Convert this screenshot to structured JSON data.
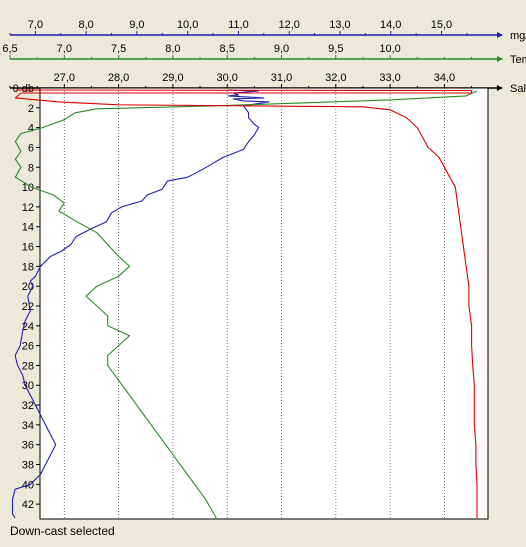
{
  "status_text": "Down-cast selected",
  "chart_data": {
    "type": "line",
    "depth_axis": {
      "ticks": [
        0,
        2,
        4,
        6,
        8,
        10,
        12,
        14,
        16,
        18,
        20,
        22,
        24,
        26,
        28,
        30,
        32,
        34,
        36,
        38,
        40,
        42
      ],
      "tick_labels": [
        "0 db",
        "2",
        "4",
        "6",
        "8",
        "10",
        "12",
        "14",
        "16",
        "18",
        "20",
        "22",
        "24",
        "26",
        "28",
        "30",
        "32",
        "34",
        "36",
        "38",
        "40",
        "42"
      ],
      "range": [
        0,
        43.5
      ],
      "inverted": true
    },
    "x_axes": [
      {
        "key": "oxygen",
        "unit_label": "mg/l",
        "color": "#1f1fb0",
        "range": [
          6.5,
          15.7
        ],
        "major_ticks": [
          7,
          8,
          9,
          10,
          11,
          12,
          13,
          14,
          15
        ],
        "major_labels": [
          "7,0",
          "8,0",
          "9,0",
          "10,0",
          "11,0",
          "12,0",
          "13,0",
          "14,0",
          "15,0"
        ]
      },
      {
        "key": "temperature",
        "unit_label": "Temp",
        "color": "#2a8a2a",
        "range": [
          6.5,
          10.8
        ],
        "major_ticks": [
          6.5,
          7,
          7.5,
          8,
          8.5,
          9,
          9.5,
          10
        ],
        "major_labels": [
          "6,5",
          "7,0",
          "7,5",
          "8,0",
          "8,5",
          "9,0",
          "9,5",
          "10,0"
        ]
      },
      {
        "key": "salinity",
        "unit_label": "Sal.",
        "color": "#000000",
        "range": [
          26.0,
          34.6
        ],
        "major_ticks": [
          27,
          28,
          29,
          30,
          31,
          32,
          33,
          34
        ],
        "major_labels": [
          "27,0",
          "28,0",
          "29,0",
          "30,0",
          "31,0",
          "32,0",
          "33,0",
          "34,0"
        ]
      }
    ],
    "grid": "vertical-dotted",
    "series": [
      {
        "axis": "oxygen",
        "color": "#1f1fb0",
        "points": [
          [
            10.8,
            0.2
          ],
          [
            11.4,
            0.3
          ],
          [
            10.9,
            0.5
          ],
          [
            11.0,
            0.7
          ],
          [
            10.8,
            0.8
          ],
          [
            11.5,
            1.0
          ],
          [
            10.9,
            1.1
          ],
          [
            11.1,
            1.3
          ],
          [
            11.6,
            1.4
          ],
          [
            11.1,
            1.8
          ],
          [
            11.2,
            2.5
          ],
          [
            11.2,
            3.0
          ],
          [
            11.3,
            3.6
          ],
          [
            11.4,
            4.0
          ],
          [
            11.3,
            4.8
          ],
          [
            11.2,
            5.4
          ],
          [
            11.1,
            6.2
          ],
          [
            10.7,
            7.0
          ],
          [
            10.5,
            7.6
          ],
          [
            10.3,
            8.2
          ],
          [
            10.0,
            9.0
          ],
          [
            9.6,
            9.4
          ],
          [
            9.5,
            10.2
          ],
          [
            9.2,
            10.8
          ],
          [
            9.1,
            11.4
          ],
          [
            8.7,
            12.0
          ],
          [
            8.5,
            12.6
          ],
          [
            8.4,
            13.5
          ],
          [
            8.1,
            14.2
          ],
          [
            7.8,
            15.0
          ],
          [
            7.7,
            15.8
          ],
          [
            7.5,
            16.5
          ],
          [
            7.3,
            17.0
          ],
          [
            7.1,
            18.0
          ],
          [
            7.0,
            19.0
          ],
          [
            6.9,
            19.5
          ],
          [
            6.95,
            20.0
          ],
          [
            6.85,
            21.0
          ],
          [
            6.9,
            22.5
          ],
          [
            6.8,
            23.5
          ],
          [
            6.75,
            24.5
          ],
          [
            6.7,
            26.0
          ],
          [
            6.6,
            27.0
          ],
          [
            6.65,
            28.0
          ],
          [
            6.75,
            29.0
          ],
          [
            6.8,
            30.0
          ],
          [
            6.9,
            31.0
          ],
          [
            7.0,
            32.0
          ],
          [
            7.1,
            33.0
          ],
          [
            7.2,
            34.0
          ],
          [
            7.3,
            35.0
          ],
          [
            7.4,
            36.0
          ],
          [
            7.3,
            37.0
          ],
          [
            7.2,
            38.0
          ],
          [
            7.1,
            39.0
          ],
          [
            6.9,
            40.0
          ],
          [
            6.6,
            40.5
          ],
          [
            6.55,
            41.5
          ],
          [
            6.55,
            43.0
          ],
          [
            6.6,
            43.4
          ]
        ]
      },
      {
        "axis": "temperature",
        "color": "#2a8a2a",
        "points": [
          [
            10.8,
            0.3
          ],
          [
            10.7,
            0.8
          ],
          [
            10.0,
            1.2
          ],
          [
            8.4,
            1.8
          ],
          [
            7.3,
            2.1
          ],
          [
            7.1,
            2.5
          ],
          [
            7.0,
            3.2
          ],
          [
            6.8,
            4.0
          ],
          [
            6.6,
            4.6
          ],
          [
            6.55,
            5.4
          ],
          [
            6.6,
            6.4
          ],
          [
            6.55,
            7.2
          ],
          [
            6.6,
            8.0
          ],
          [
            6.55,
            9.0
          ],
          [
            6.7,
            10.0
          ],
          [
            6.9,
            10.8
          ],
          [
            7.0,
            11.6
          ],
          [
            6.95,
            12.4
          ],
          [
            7.1,
            13.4
          ],
          [
            7.3,
            14.6
          ],
          [
            7.4,
            15.8
          ],
          [
            7.5,
            17.0
          ],
          [
            7.6,
            18.0
          ],
          [
            7.5,
            19.0
          ],
          [
            7.3,
            20.0
          ],
          [
            7.2,
            21.0
          ],
          [
            7.3,
            22.0
          ],
          [
            7.4,
            23.0
          ],
          [
            7.4,
            24.0
          ],
          [
            7.6,
            25.0
          ],
          [
            7.5,
            26.0
          ],
          [
            7.4,
            27.0
          ],
          [
            7.4,
            28.0
          ],
          [
            7.5,
            29.5
          ],
          [
            7.6,
            31.0
          ],
          [
            7.7,
            32.5
          ],
          [
            7.8,
            34.0
          ],
          [
            7.9,
            35.5
          ],
          [
            8.0,
            37.0
          ],
          [
            8.1,
            38.5
          ],
          [
            8.2,
            40.0
          ],
          [
            8.3,
            41.5
          ],
          [
            8.4,
            43.4
          ]
        ]
      },
      {
        "axis": "salinity",
        "color": "#e00000",
        "points": [
          [
            26.1,
            0.2
          ],
          [
            34.5,
            0.25
          ],
          [
            34.5,
            0.5
          ],
          [
            26.2,
            0.5
          ],
          [
            26.1,
            1.0
          ],
          [
            26.9,
            1.4
          ],
          [
            28.0,
            1.7
          ],
          [
            32.5,
            1.9
          ],
          [
            33.0,
            2.2
          ],
          [
            33.3,
            3.0
          ],
          [
            33.5,
            4.0
          ],
          [
            33.6,
            5.0
          ],
          [
            33.7,
            6.0
          ],
          [
            33.9,
            7.0
          ],
          [
            34.0,
            8.0
          ],
          [
            34.1,
            9.0
          ],
          [
            34.2,
            10.0
          ],
          [
            34.25,
            12.0
          ],
          [
            34.3,
            14.0
          ],
          [
            34.35,
            16.0
          ],
          [
            34.4,
            18.0
          ],
          [
            34.45,
            20.0
          ],
          [
            34.45,
            22.0
          ],
          [
            34.5,
            24.0
          ],
          [
            34.5,
            26.0
          ],
          [
            34.52,
            28.0
          ],
          [
            34.55,
            30.0
          ],
          [
            34.55,
            32.0
          ],
          [
            34.55,
            34.0
          ],
          [
            34.58,
            36.0
          ],
          [
            34.58,
            38.0
          ],
          [
            34.6,
            40.0
          ],
          [
            34.6,
            42.0
          ],
          [
            34.6,
            43.4
          ]
        ]
      }
    ]
  }
}
